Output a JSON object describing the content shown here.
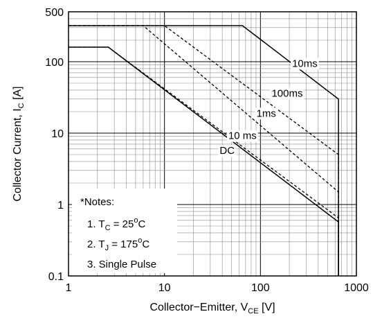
{
  "chart_data": {
    "type": "line",
    "x_scale": "log",
    "y_scale": "log",
    "xlim": [
      1,
      1000
    ],
    "ylim": [
      0.1,
      500
    ],
    "xlabel": "Collector−Emitter, V",
    "xlabel_sub": "CE",
    "xlabel_unit": " [V]",
    "ylabel": "Collector Current, I",
    "ylabel_sub": "C",
    "ylabel_unit": " [A]",
    "x_ticks": [
      {
        "value": 1,
        "label": "1"
      },
      {
        "value": 10,
        "label": "10"
      },
      {
        "value": 100,
        "label": "100"
      },
      {
        "value": 1000,
        "label": "1000"
      }
    ],
    "y_ticks": [
      {
        "value": 0.1,
        "label": "0.1"
      },
      {
        "value": 1,
        "label": "1"
      },
      {
        "value": 10,
        "label": "10"
      },
      {
        "value": 100,
        "label": "100"
      },
      {
        "value": 500,
        "label": "500"
      }
    ],
    "grid": true,
    "series": [
      {
        "name": "10ms",
        "style": "solid",
        "points": [
          [
            1,
            320
          ],
          [
            65,
            320
          ],
          [
            650,
            30
          ],
          [
            650,
            0.1
          ]
        ]
      },
      {
        "name": "100ms",
        "style": "dashed",
        "points": [
          [
            1,
            320
          ],
          [
            10,
            320
          ],
          [
            650,
            5
          ],
          [
            650,
            0.1
          ]
        ]
      },
      {
        "name": "1ms",
        "style": "dashed",
        "points": [
          [
            1,
            320
          ],
          [
            6,
            320
          ],
          [
            650,
            1.5
          ],
          [
            650,
            0.1
          ]
        ]
      },
      {
        "name": "10 ms",
        "style": "dashed",
        "points": [
          [
            1,
            160
          ],
          [
            2.6,
            160
          ],
          [
            650,
            0.65
          ],
          [
            650,
            0.1
          ]
        ]
      },
      {
        "name": "DC",
        "style": "solid",
        "points": [
          [
            1,
            160
          ],
          [
            2.6,
            160
          ],
          [
            650,
            0.57
          ],
          [
            650,
            0.1
          ]
        ]
      }
    ],
    "curve_labels": [
      {
        "series": 0,
        "text": "10ms",
        "at": [
          290,
          95
        ]
      },
      {
        "series": 1,
        "text": "100ms",
        "at": [
          190,
          36
        ]
      },
      {
        "series": 2,
        "text": "1ms",
        "at": [
          115,
          19
        ]
      },
      {
        "series": 3,
        "text": "10 ms",
        "at": [
          65,
          9.2
        ]
      },
      {
        "series": 4,
        "text": "DC",
        "at": [
          45,
          5.7
        ]
      }
    ],
    "notes": {
      "title": "*Notes:",
      "items": [
        {
          "prefix": "1. T",
          "sub": "C",
          "middle": " = 25",
          "sup": "o",
          "suffix": "C"
        },
        {
          "prefix": "2. T",
          "sub": "J",
          "middle": " = 175",
          "sup": "o",
          "suffix": "C"
        },
        {
          "prefix": "3. Single Pulse",
          "sub": "",
          "middle": "",
          "sup": "",
          "suffix": ""
        }
      ]
    }
  }
}
